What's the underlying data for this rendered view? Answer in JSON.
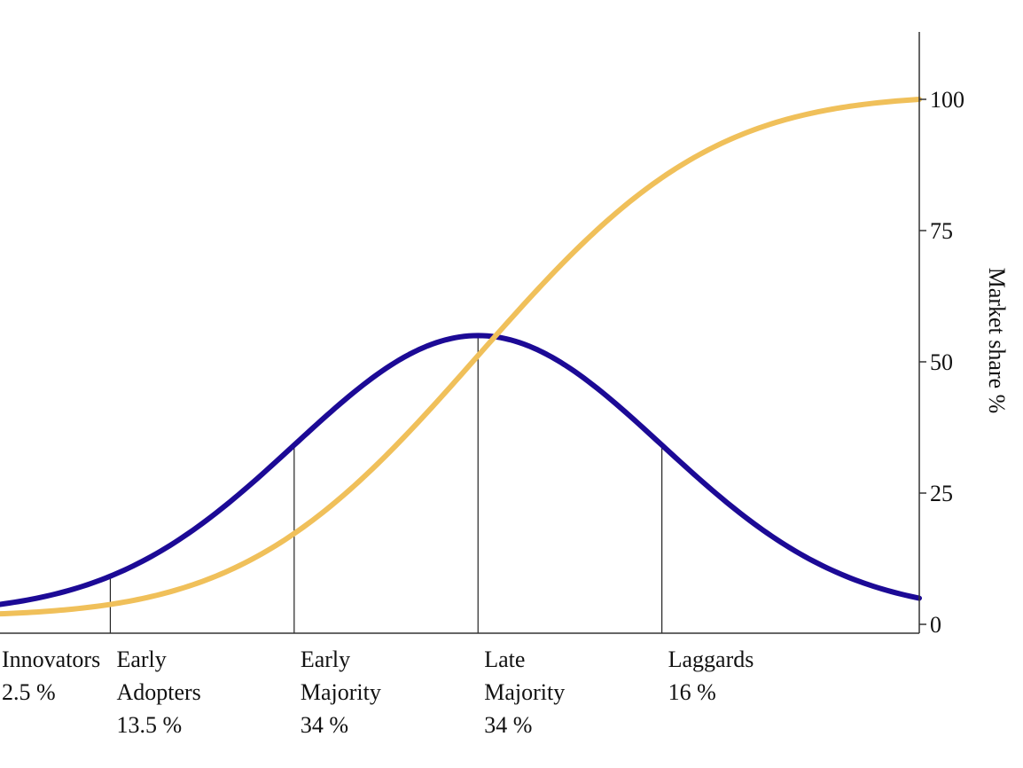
{
  "chart_data": {
    "type": "line",
    "title": "",
    "xlabel": "",
    "ylabel": "Market share %",
    "y_axis_side": "right",
    "yticks": [
      0,
      25,
      50,
      75,
      100
    ],
    "ylim": [
      0,
      100
    ],
    "categories": [
      {
        "lines": [
          "Innovators",
          "2.5 %"
        ]
      },
      {
        "lines": [
          "Early",
          "Adopters",
          "13.5 %"
        ]
      },
      {
        "lines": [
          "Early",
          "Majority",
          "34 %"
        ]
      },
      {
        "lines": [
          "Late",
          "Majority",
          "34 %"
        ]
      },
      {
        "lines": [
          "Laggards",
          "16 %"
        ]
      }
    ],
    "category_shares": [
      2.5,
      13.5,
      34,
      34,
      16
    ],
    "category_boundaries_sd": [
      -2,
      -1,
      0,
      1
    ],
    "x_range_sd": [
      -2.6,
      2.4
    ],
    "series": [
      {
        "kind": "adoption-bell",
        "color": "#1c0a96",
        "peak": 55,
        "base": 2
      },
      {
        "kind": "cumulative-market-share",
        "color": "#f0c05a",
        "start": 2,
        "end": 100
      }
    ],
    "grid": false,
    "legend": "none"
  }
}
